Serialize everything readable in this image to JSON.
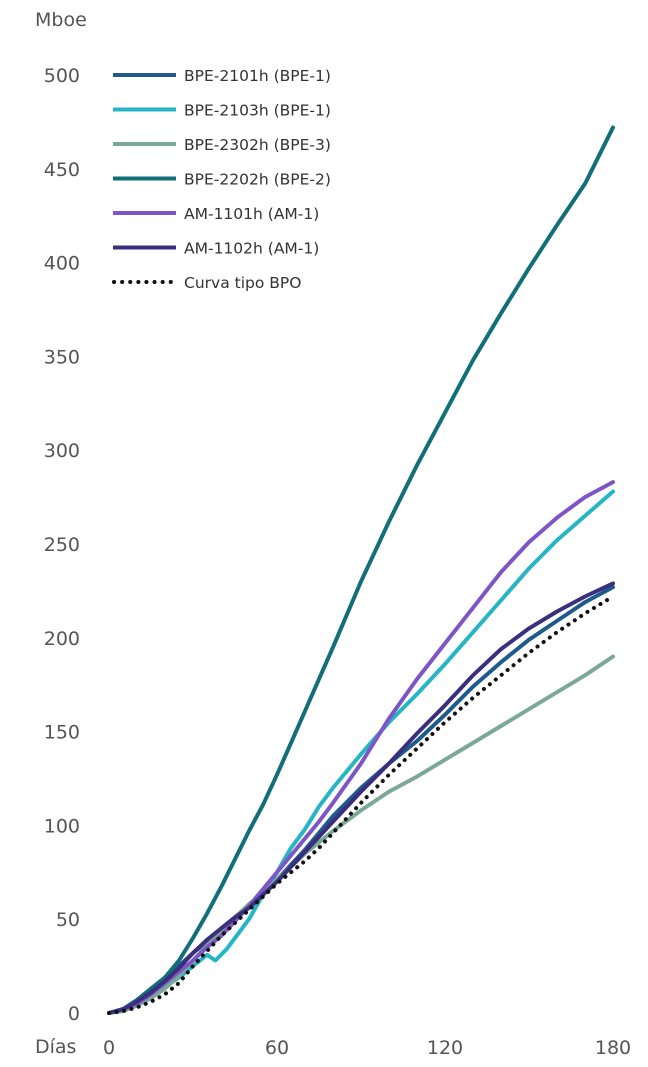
{
  "chart_data": {
    "type": "line",
    "ylabel": "Mboe",
    "xlabel": "Días",
    "xlim": [
      0,
      180
    ],
    "ylim": [
      0,
      500
    ],
    "x_ticks": [
      0,
      60,
      120,
      180
    ],
    "y_ticks": [
      0,
      50,
      100,
      150,
      200,
      250,
      300,
      350,
      400,
      450,
      500
    ],
    "grid": false,
    "legend_position": "top-left",
    "series": [
      {
        "name": "BPE-2101h (BPE-1)",
        "color": "#1F5A8C",
        "style": "solid",
        "points": [
          [
            0,
            0
          ],
          [
            5,
            2
          ],
          [
            10,
            6
          ],
          [
            15,
            11
          ],
          [
            20,
            18
          ],
          [
            25,
            25
          ],
          [
            30,
            32
          ],
          [
            35,
            38
          ],
          [
            40,
            45
          ],
          [
            45,
            51
          ],
          [
            50,
            57
          ],
          [
            55,
            63
          ],
          [
            60,
            71
          ],
          [
            65,
            79
          ],
          [
            70,
            87
          ],
          [
            75,
            96
          ],
          [
            80,
            105
          ],
          [
            90,
            120
          ],
          [
            100,
            133
          ],
          [
            110,
            145
          ],
          [
            120,
            159
          ],
          [
            130,
            174
          ],
          [
            140,
            187
          ],
          [
            150,
            199
          ],
          [
            160,
            209
          ],
          [
            170,
            219
          ],
          [
            180,
            227
          ]
        ]
      },
      {
        "name": "BPE-2103h (BPE-1)",
        "color": "#26B5C4",
        "style": "solid",
        "points": [
          [
            0,
            0
          ],
          [
            5,
            2
          ],
          [
            10,
            5
          ],
          [
            15,
            9
          ],
          [
            20,
            14
          ],
          [
            25,
            19
          ],
          [
            30,
            25
          ],
          [
            35,
            31
          ],
          [
            38,
            28
          ],
          [
            42,
            34
          ],
          [
            45,
            40
          ],
          [
            50,
            50
          ],
          [
            55,
            63
          ],
          [
            60,
            75
          ],
          [
            65,
            88
          ],
          [
            70,
            98
          ],
          [
            75,
            110
          ],
          [
            80,
            120
          ],
          [
            90,
            138
          ],
          [
            100,
            155
          ],
          [
            110,
            170
          ],
          [
            120,
            186
          ],
          [
            130,
            203
          ],
          [
            140,
            220
          ],
          [
            150,
            237
          ],
          [
            160,
            252
          ],
          [
            170,
            265
          ],
          [
            180,
            278
          ]
        ]
      },
      {
        "name": "BPE-2302h (BPE-3)",
        "color": "#7BA897",
        "style": "solid",
        "points": [
          [
            0,
            0
          ],
          [
            5,
            1
          ],
          [
            10,
            4
          ],
          [
            15,
            8
          ],
          [
            20,
            13
          ],
          [
            25,
            20
          ],
          [
            30,
            28
          ],
          [
            35,
            36
          ],
          [
            40,
            44
          ],
          [
            45,
            51
          ],
          [
            50,
            58
          ],
          [
            55,
            64
          ],
          [
            60,
            71
          ],
          [
            65,
            78
          ],
          [
            70,
            85
          ],
          [
            75,
            91
          ],
          [
            80,
            97
          ],
          [
            90,
            108
          ],
          [
            100,
            118
          ],
          [
            110,
            126
          ],
          [
            120,
            135
          ],
          [
            130,
            144
          ],
          [
            140,
            153
          ],
          [
            150,
            162
          ],
          [
            160,
            171
          ],
          [
            170,
            180
          ],
          [
            180,
            190
          ]
        ]
      },
      {
        "name": "BPE-2202h (BPE-2)",
        "color": "#126E78",
        "style": "solid",
        "points": [
          [
            0,
            0
          ],
          [
            5,
            2
          ],
          [
            10,
            7
          ],
          [
            15,
            13
          ],
          [
            20,
            19
          ],
          [
            25,
            28
          ],
          [
            30,
            40
          ],
          [
            35,
            53
          ],
          [
            40,
            67
          ],
          [
            45,
            82
          ],
          [
            50,
            97
          ],
          [
            55,
            111
          ],
          [
            60,
            127
          ],
          [
            65,
            144
          ],
          [
            70,
            161
          ],
          [
            75,
            178
          ],
          [
            80,
            195
          ],
          [
            90,
            230
          ],
          [
            100,
            262
          ],
          [
            110,
            292
          ],
          [
            120,
            320
          ],
          [
            130,
            348
          ],
          [
            140,
            373
          ],
          [
            150,
            397
          ],
          [
            160,
            420
          ],
          [
            170,
            442
          ],
          [
            180,
            472
          ]
        ]
      },
      {
        "name": "AM-1101h (AM-1)",
        "color": "#7E55C6",
        "style": "solid",
        "points": [
          [
            0,
            0
          ],
          [
            5,
            2
          ],
          [
            10,
            5
          ],
          [
            15,
            10
          ],
          [
            20,
            16
          ],
          [
            25,
            22
          ],
          [
            30,
            28
          ],
          [
            35,
            35
          ],
          [
            40,
            41
          ],
          [
            45,
            49
          ],
          [
            50,
            57
          ],
          [
            55,
            66
          ],
          [
            60,
            75
          ],
          [
            65,
            84
          ],
          [
            70,
            93
          ],
          [
            75,
            102
          ],
          [
            80,
            112
          ],
          [
            90,
            133
          ],
          [
            100,
            157
          ],
          [
            110,
            178
          ],
          [
            120,
            197
          ],
          [
            130,
            216
          ],
          [
            140,
            235
          ],
          [
            150,
            251
          ],
          [
            160,
            264
          ],
          [
            170,
            275
          ],
          [
            180,
            283
          ]
        ]
      },
      {
        "name": "AM-1102h (AM-1)",
        "color": "#3A2E7E",
        "style": "solid",
        "points": [
          [
            0,
            0
          ],
          [
            5,
            2
          ],
          [
            10,
            6
          ],
          [
            15,
            11
          ],
          [
            20,
            17
          ],
          [
            25,
            24
          ],
          [
            30,
            32
          ],
          [
            35,
            39
          ],
          [
            40,
            45
          ],
          [
            45,
            51
          ],
          [
            50,
            56
          ],
          [
            55,
            63
          ],
          [
            60,
            70
          ],
          [
            65,
            78
          ],
          [
            70,
            86
          ],
          [
            75,
            94
          ],
          [
            80,
            102
          ],
          [
            90,
            118
          ],
          [
            100,
            133
          ],
          [
            110,
            149
          ],
          [
            120,
            164
          ],
          [
            130,
            180
          ],
          [
            140,
            194
          ],
          [
            150,
            205
          ],
          [
            160,
            214
          ],
          [
            170,
            222
          ],
          [
            180,
            229
          ]
        ]
      },
      {
        "name": "Curva tipo BPO",
        "color": "#111111",
        "style": "dotted",
        "points": [
          [
            0,
            0
          ],
          [
            5,
            1
          ],
          [
            10,
            3
          ],
          [
            15,
            6
          ],
          [
            20,
            10
          ],
          [
            25,
            16
          ],
          [
            30,
            25
          ],
          [
            35,
            33
          ],
          [
            40,
            41
          ],
          [
            45,
            48
          ],
          [
            50,
            55
          ],
          [
            55,
            62
          ],
          [
            60,
            69
          ],
          [
            65,
            75
          ],
          [
            70,
            81
          ],
          [
            75,
            88
          ],
          [
            80,
            96
          ],
          [
            90,
            112
          ],
          [
            100,
            127
          ],
          [
            110,
            141
          ],
          [
            120,
            155
          ],
          [
            130,
            168
          ],
          [
            140,
            180
          ],
          [
            150,
            192
          ],
          [
            160,
            203
          ],
          [
            170,
            213
          ],
          [
            180,
            222
          ]
        ]
      }
    ]
  }
}
